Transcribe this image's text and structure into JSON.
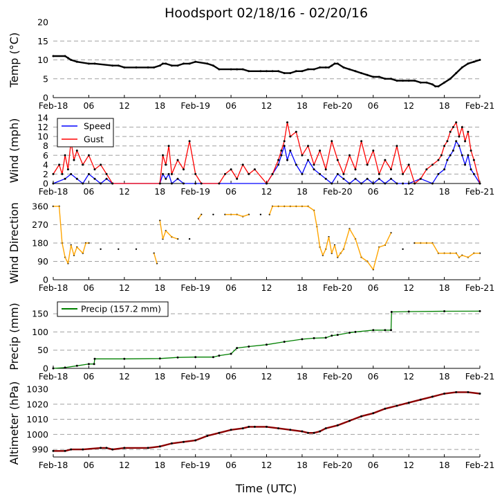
{
  "title": "Hoodsport 02/18/16 - 02/20/16",
  "xlabel": "Time (UTC)",
  "x_ticks": [
    "Feb-18",
    "06",
    "12",
    "18",
    "Feb-19",
    "06",
    "12",
    "18",
    "Feb-20",
    "06",
    "12",
    "18",
    "Feb-21"
  ],
  "colors": {
    "temp": "#000000",
    "speed": "#0000ff",
    "gust": "#ff0000",
    "direction": "#ffa500",
    "precip": "#008000",
    "altimeter": "#8b0000",
    "points": "#000000"
  },
  "chart_data": [
    {
      "type": "line",
      "name": "temp",
      "ylabel": "Temp (°C)",
      "ylim": [
        0,
        20
      ],
      "yticks": [
        "0",
        "5",
        "10",
        "15",
        "20"
      ],
      "xlim_hours": [
        0,
        72
      ],
      "series": [
        {
          "name": "Temperature",
          "x": [
            0,
            2,
            2.5,
            3,
            4,
            6,
            7,
            10,
            11,
            12,
            14,
            16,
            17,
            18,
            18.5,
            19,
            20,
            21,
            22,
            23,
            24,
            26,
            27,
            28,
            30,
            31,
            32,
            33,
            35,
            36,
            37,
            38,
            39,
            40,
            41,
            42,
            43,
            44,
            45,
            46,
            46.5,
            47,
            47.5,
            48,
            49,
            50,
            51,
            52,
            53,
            54,
            55,
            56,
            57,
            58,
            59,
            60,
            61,
            62,
            63,
            64,
            64.5,
            65,
            66,
            67,
            68,
            69,
            70,
            71,
            72
          ],
          "values": [
            11,
            11,
            10.5,
            10,
            9.5,
            9,
            9,
            8.5,
            8.5,
            8,
            8,
            8,
            8,
            8.5,
            9,
            9,
            8.5,
            8.5,
            9,
            9,
            9.5,
            9,
            8.5,
            7.5,
            7.5,
            7.5,
            7.5,
            7,
            7,
            7,
            7,
            7,
            6.5,
            6.5,
            7,
            7,
            7.5,
            7.5,
            8,
            8,
            8,
            8.5,
            9,
            9,
            8,
            7.5,
            7,
            6.5,
            6,
            5.5,
            5.5,
            5,
            5,
            4.5,
            4.5,
            4.5,
            4.5,
            4,
            4,
            3.5,
            3,
            3,
            4,
            5,
            6.5,
            8,
            9,
            9.5,
            10
          ]
        }
      ]
    },
    {
      "type": "line",
      "name": "wind",
      "ylabel": "Wind (mph)",
      "ylim": [
        0,
        14
      ],
      "yticks": [
        "0",
        "2",
        "4",
        "6",
        "8",
        "10",
        "12",
        "14"
      ],
      "legend_position": "top-left",
      "series": [
        {
          "name": "Speed",
          "x": [
            0,
            2,
            3,
            4,
            5,
            6,
            7,
            8,
            9,
            10,
            18,
            18.5,
            19,
            19.5,
            20,
            21,
            22,
            24,
            36,
            37,
            38,
            38.5,
            39,
            39.5,
            40,
            41,
            42,
            43,
            44,
            45,
            46,
            47,
            48,
            49,
            50,
            51,
            52,
            53,
            54,
            55,
            56,
            57,
            58,
            59,
            60,
            62,
            64,
            65,
            66,
            66.5,
            67,
            67.5,
            68,
            68.5,
            69,
            69.5,
            70,
            70.5,
            71,
            72
          ],
          "values": [
            0,
            1,
            2,
            1,
            0,
            2,
            1,
            0,
            1,
            0,
            0,
            2,
            1,
            2,
            0,
            1,
            0,
            0,
            0,
            2,
            4,
            6,
            8,
            5,
            7,
            4,
            2,
            5,
            3,
            2,
            1,
            0,
            2,
            1,
            0,
            1,
            0,
            1,
            0,
            1,
            0,
            1,
            0,
            0,
            0,
            1,
            0,
            2,
            3,
            5,
            6,
            7,
            9,
            8,
            6,
            4,
            6,
            3,
            2,
            0
          ]
        },
        {
          "name": "Gust",
          "x": [
            0,
            1,
            1.5,
            2,
            2.5,
            3,
            3.5,
            4,
            5,
            6,
            7,
            8,
            9,
            10,
            18,
            18.5,
            19,
            19.5,
            20,
            21,
            22,
            23,
            24,
            25,
            28,
            29,
            30,
            31,
            32,
            33,
            34,
            36,
            37,
            38,
            38.5,
            39,
            39.5,
            40,
            41,
            42,
            43,
            44,
            45,
            46,
            47,
            48,
            49,
            50,
            51,
            52,
            53,
            54,
            55,
            56,
            57,
            58,
            59,
            60,
            61,
            62,
            63,
            64,
            65,
            65.5,
            66,
            66.5,
            67,
            67.5,
            68,
            68.5,
            69,
            69.5,
            70,
            70.5,
            71,
            72
          ],
          "values": [
            2,
            4,
            2,
            6,
            3,
            9,
            5,
            7,
            4,
            6,
            3,
            4,
            2,
            0,
            0,
            6,
            4,
            8,
            2,
            5,
            3,
            9,
            2,
            0,
            0,
            2,
            3,
            1,
            4,
            2,
            3,
            0,
            2,
            5,
            7,
            9,
            13,
            10,
            11,
            6,
            8,
            4,
            7,
            3,
            9,
            5,
            2,
            6,
            3,
            9,
            4,
            7,
            2,
            5,
            3,
            8,
            2,
            4,
            0,
            1,
            3,
            4,
            5,
            6,
            8,
            9,
            11,
            12,
            13,
            10,
            12,
            9,
            11,
            7,
            5,
            0
          ]
        }
      ]
    },
    {
      "type": "scatter",
      "name": "direction",
      "ylabel": "Wind Direction",
      "ylim": [
        0,
        360
      ],
      "yticks": [
        "0",
        "90",
        "180",
        "270",
        "360"
      ],
      "series": [
        {
          "name": "Direction",
          "x": [
            0,
            1,
            1.5,
            2,
            2.5,
            3,
            3.5,
            4,
            5,
            5.5,
            6,
            8,
            11,
            14,
            17,
            17.5,
            18,
            18.5,
            19,
            20,
            21,
            23,
            24.5,
            25,
            27,
            29,
            30,
            31,
            32,
            33,
            35,
            36.5,
            37,
            38,
            39,
            40,
            41,
            42,
            43,
            44,
            44.5,
            45,
            45.5,
            46,
            46.5,
            47,
            47.5,
            48,
            48.5,
            49,
            50,
            51,
            52,
            53,
            54,
            55,
            56,
            57,
            59,
            61,
            62,
            63,
            64,
            65,
            66,
            67,
            68,
            68.5,
            69,
            70,
            71,
            72
          ],
          "values": [
            360,
            360,
            180,
            110,
            80,
            170,
            120,
            160,
            130,
            180,
            180,
            150,
            150,
            150,
            130,
            80,
            290,
            200,
            240,
            210,
            200,
            200,
            300,
            320,
            320,
            320,
            320,
            320,
            310,
            320,
            320,
            320,
            360,
            360,
            360,
            360,
            360,
            360,
            360,
            340,
            260,
            160,
            120,
            150,
            210,
            130,
            170,
            110,
            130,
            150,
            250,
            200,
            110,
            90,
            50,
            160,
            170,
            230,
            150,
            180,
            180,
            180,
            180,
            130,
            130,
            130,
            130,
            110,
            120,
            110,
            130,
            130
          ]
        }
      ]
    },
    {
      "type": "line",
      "name": "precip",
      "ylabel": "Precip (mm)",
      "ylim": [
        0,
        175
      ],
      "yticks": [
        "0",
        "50",
        "100",
        "150"
      ],
      "legend_position": "top-left",
      "series": [
        {
          "name": "Precip (157.2 mm)",
          "x": [
            0,
            2,
            4,
            6,
            6.9,
            7,
            12,
            18,
            21,
            24,
            27,
            28,
            30,
            31,
            33,
            36,
            39,
            42,
            44,
            46,
            47,
            48,
            50,
            51,
            54,
            56,
            57,
            57.1,
            60,
            66,
            72
          ],
          "values": [
            0,
            2,
            7,
            12,
            12,
            26,
            26,
            27,
            30,
            31,
            31,
            35,
            40,
            56,
            60,
            65,
            73,
            80,
            83,
            84,
            90,
            92,
            98,
            100,
            105,
            105,
            105,
            155,
            156,
            157,
            157.2
          ]
        }
      ]
    },
    {
      "type": "line",
      "name": "altimeter",
      "ylabel": "Altimeter (hPa)",
      "ylim": [
        985,
        1030
      ],
      "yticks": [
        "990",
        "1000",
        "1010",
        "1020",
        "1030"
      ],
      "series": [
        {
          "name": "Altimeter",
          "x": [
            0,
            2,
            3,
            5,
            8,
            9,
            10,
            12,
            16,
            18,
            20,
            22,
            24,
            26,
            28,
            30,
            32,
            33,
            34,
            36,
            38,
            40,
            42,
            43,
            44,
            45,
            46,
            48,
            50,
            52,
            54,
            56,
            58,
            60,
            62,
            64,
            66,
            68,
            70,
            72
          ],
          "values": [
            989,
            989,
            990,
            990,
            991,
            991,
            990,
            991,
            991,
            992,
            994,
            995,
            996,
            999,
            1001,
            1003,
            1004,
            1005,
            1005,
            1005,
            1004,
            1003,
            1002,
            1001,
            1001,
            1002,
            1004,
            1006,
            1009,
            1012,
            1014,
            1017,
            1019,
            1021,
            1023,
            1025,
            1027,
            1028,
            1028,
            1027
          ]
        }
      ]
    }
  ]
}
